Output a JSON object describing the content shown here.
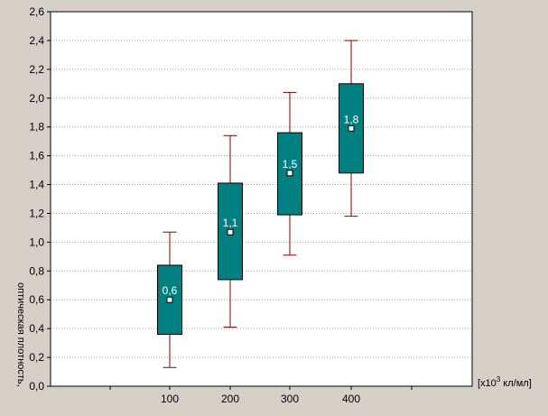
{
  "chart_data": {
    "type": "box",
    "title": "",
    "xlabel": "[x10³ кл/мл]",
    "xlabel_parts": {
      "prefix": "[x10",
      "sup": "3",
      "suffix": " кл/мл]"
    },
    "ylabel": "оптическая плотность,",
    "ylim": [
      0,
      2.6
    ],
    "ytick_labels": [
      "0,0",
      "0,2",
      "0,4",
      "0,6",
      "0,8",
      "1,0",
      "1,2",
      "1,4",
      "1,6",
      "1,8",
      "2,0",
      "2,2",
      "2,4",
      "2,6"
    ],
    "categories": [
      "100",
      "200",
      "300",
      "400"
    ],
    "grid": true,
    "series": [
      {
        "boxes": [
          {
            "category": "100",
            "whisker_low": 0.13,
            "q1": 0.36,
            "mean": 0.6,
            "q3": 0.84,
            "whisker_high": 1.07,
            "label": "0,6"
          },
          {
            "category": "200",
            "whisker_low": 0.41,
            "q1": 0.74,
            "mean": 1.07,
            "q3": 1.41,
            "whisker_high": 1.74,
            "label": "1,1"
          },
          {
            "category": "300",
            "whisker_low": 0.91,
            "q1": 1.19,
            "mean": 1.48,
            "q3": 1.76,
            "whisker_high": 2.04,
            "label": "1,5"
          },
          {
            "category": "400",
            "whisker_low": 1.18,
            "q1": 1.48,
            "mean": 1.79,
            "q3": 2.1,
            "whisker_high": 2.4,
            "label": "1,8"
          }
        ]
      }
    ],
    "colors": {
      "box_fill": "#008080",
      "box_stroke": "#000000",
      "whisker": "#800000",
      "marker_fill": "#ffffff",
      "label_text": "#ffffff",
      "grid": "#a0a0a0",
      "plot_bg": "#ffffff",
      "frame_bg": "#d4d0c8"
    }
  }
}
